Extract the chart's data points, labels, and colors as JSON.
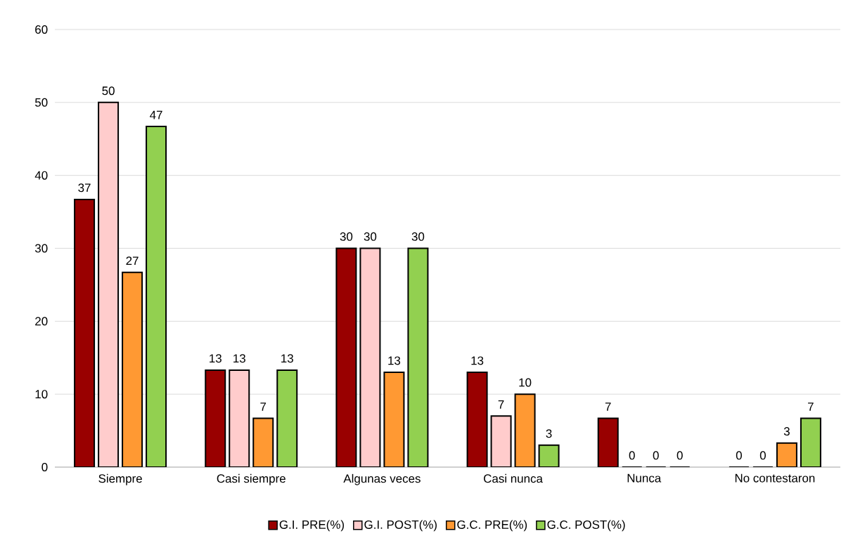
{
  "chart_data": {
    "type": "bar",
    "categories": [
      "Siempre",
      "Casi siempre",
      "Algunas veces",
      "Casi nunca",
      "Nunca",
      "No contestaron"
    ],
    "series": [
      {
        "name": "G.I. PRE(%)",
        "color": "#990000",
        "values": [
          36.7,
          13.3,
          30,
          13,
          6.7,
          0
        ],
        "value_labels": [
          "37",
          "13",
          "30",
          "13",
          "7",
          "0"
        ]
      },
      {
        "name": "G.I. POST(%)",
        "color": "#ffcccc",
        "values": [
          50,
          13.3,
          30,
          7,
          0,
          0
        ],
        "value_labels": [
          "50",
          "13",
          "30",
          "7",
          "0",
          "0"
        ]
      },
      {
        "name": "G.C. PRE(%)",
        "color": "#ff9933",
        "values": [
          26.7,
          6.7,
          13,
          10,
          0,
          3.3
        ],
        "value_labels": [
          "27",
          "7",
          "13",
          "10",
          "0",
          "3"
        ]
      },
      {
        "name": "G.C. POST(%)",
        "color": "#92d050",
        "values": [
          46.7,
          13.3,
          30,
          3,
          0,
          6.7
        ],
        "value_labels": [
          "47",
          "13",
          "30",
          "3",
          "0",
          "7"
        ]
      }
    ],
    "ylim": [
      0,
      60
    ],
    "yticks": [
      0,
      10,
      20,
      30,
      40,
      50,
      60
    ],
    "grid": "y",
    "legend": "bottom"
  }
}
